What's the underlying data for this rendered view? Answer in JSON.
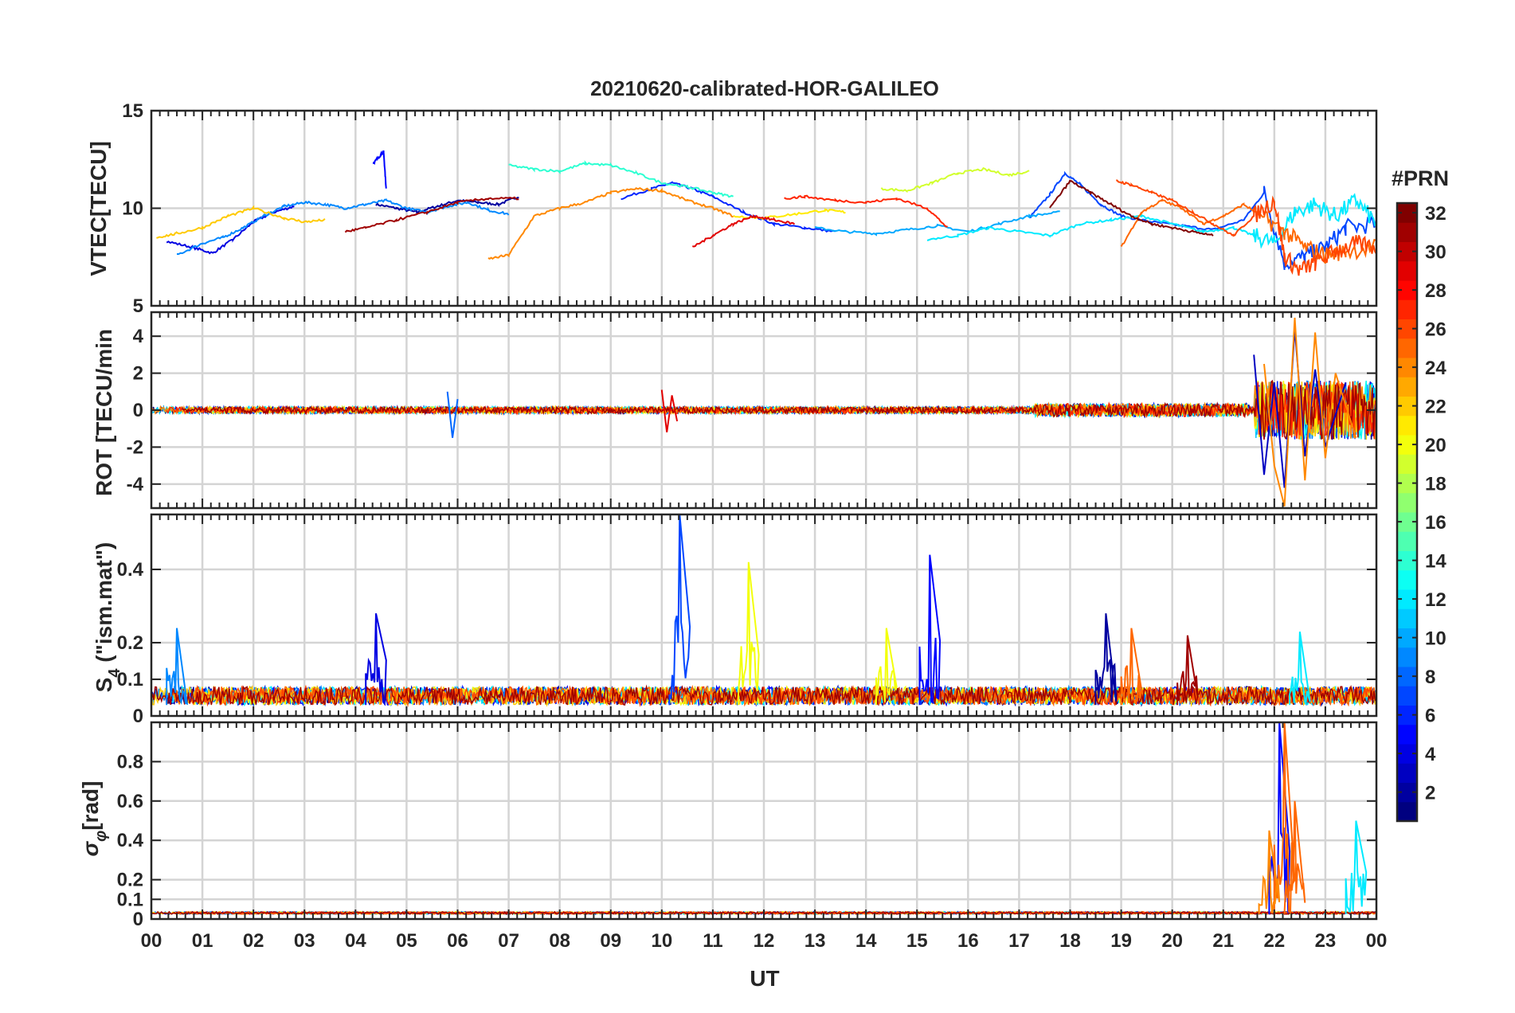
{
  "title": "20210620-calibrated-HOR-GALILEO",
  "xlabel": "UT",
  "x_tick_labels": [
    "00",
    "01",
    "02",
    "03",
    "04",
    "05",
    "06",
    "07",
    "08",
    "09",
    "10",
    "11",
    "12",
    "13",
    "14",
    "15",
    "16",
    "17",
    "18",
    "19",
    "20",
    "21",
    "22",
    "23",
    "00"
  ],
  "colorbar": {
    "label": "#PRN",
    "range": [
      1,
      32
    ],
    "tick_labels": [
      "2",
      "4",
      "6",
      "8",
      "10",
      "12",
      "14",
      "16",
      "18",
      "20",
      "22",
      "24",
      "26",
      "28",
      "30",
      "32"
    ],
    "colormap": "jet"
  },
  "chart_data": [
    {
      "panel": "vtec",
      "type": "line",
      "ylabel": "VTEC[TECU]",
      "ylim": [
        5,
        15
      ],
      "y_ticks": [
        5,
        10,
        15
      ],
      "y_tick_labels": [
        "5",
        "10",
        "15"
      ],
      "xlim": [
        0,
        24
      ],
      "grid": true,
      "series": [
        {
          "prn": 2,
          "x": [
            4.4,
            4.8,
            5.2,
            5.6,
            6.0,
            6.4,
            6.8,
            7.2
          ],
          "y": [
            10.2,
            10.0,
            9.8,
            10.1,
            10.4,
            10.3,
            10.2,
            10.6
          ]
        },
        {
          "prn": 4,
          "x": [
            0.3,
            0.8,
            1.2,
            1.6,
            2.0,
            2.4,
            2.8
          ],
          "y": [
            8.3,
            8.0,
            7.7,
            8.4,
            9.3,
            9.8,
            10.1
          ]
        },
        {
          "prn": 5,
          "x": [
            4.35,
            4.45,
            4.55,
            4.6
          ],
          "y": [
            12.3,
            12.6,
            12.9,
            11.0
          ]
        },
        {
          "prn": 6,
          "x": [
            9.2,
            9.8,
            10.2,
            10.6,
            11.0,
            11.6,
            12.2,
            12.8,
            13.4
          ],
          "y": [
            10.5,
            11.0,
            11.3,
            11.0,
            10.6,
            9.8,
            9.2,
            9.0,
            8.8
          ]
        },
        {
          "prn": 7,
          "x": [
            17.2,
            17.6,
            17.9,
            18.2,
            18.6,
            19.0,
            19.6,
            20.2,
            20.8,
            21.4,
            21.8,
            22.2,
            22.6,
            23.0,
            23.4,
            24.0
          ],
          "y": [
            9.5,
            10.7,
            11.8,
            11.2,
            10.2,
            9.6,
            9.3,
            9.1,
            8.9,
            9.4,
            10.8,
            7.2,
            7.5,
            8.0,
            9.0,
            9.2
          ]
        },
        {
          "prn": 9,
          "x": [
            0.5,
            1.0,
            1.4,
            1.8,
            2.2,
            2.6,
            3.0,
            3.4,
            3.8,
            4.2,
            4.6,
            5.0,
            5.4,
            5.8,
            6.2,
            6.6,
            7.0
          ],
          "y": [
            7.6,
            8.2,
            8.5,
            9.0,
            9.6,
            10.1,
            10.3,
            10.2,
            10.0,
            10.2,
            10.4,
            10.0,
            9.8,
            10.1,
            10.3,
            9.9,
            9.7
          ]
        },
        {
          "prn": 10,
          "x": [
            13.0,
            13.6,
            14.2,
            14.8,
            15.4,
            16.0,
            16.6,
            17.2,
            17.8
          ],
          "y": [
            9.0,
            8.8,
            8.7,
            8.9,
            9.1,
            8.8,
            9.2,
            9.6,
            9.8
          ]
        },
        {
          "prn": 12,
          "x": [
            15.2,
            15.8,
            16.4,
            17.0,
            17.6,
            18.2,
            18.8,
            19.4,
            20.0,
            20.6,
            21.2,
            21.6,
            22.0,
            22.4,
            22.8,
            23.2,
            23.6,
            24.0
          ],
          "y": [
            8.4,
            8.6,
            9.0,
            8.8,
            8.6,
            9.2,
            9.4,
            9.6,
            9.2,
            8.8,
            9.0,
            8.6,
            8.2,
            9.8,
            10.2,
            9.6,
            10.4,
            9.2
          ]
        },
        {
          "prn": 14,
          "x": [
            7.0,
            7.5,
            8.0,
            8.5,
            9.0,
            9.5,
            10.0,
            10.5,
            11.0,
            11.4
          ],
          "y": [
            12.2,
            12.0,
            11.9,
            12.3,
            12.2,
            11.8,
            11.3,
            11.1,
            10.8,
            10.6
          ]
        },
        {
          "prn": 19,
          "x": [
            14.3,
            14.8,
            15.3,
            15.8,
            16.3,
            16.8,
            17.2
          ],
          "y": [
            11.0,
            10.9,
            11.3,
            11.8,
            12.0,
            11.7,
            11.9
          ]
        },
        {
          "prn": 21,
          "x": [
            11.4,
            12.0,
            12.6,
            13.2,
            13.6
          ],
          "y": [
            9.6,
            9.5,
            9.7,
            9.9,
            9.8
          ]
        },
        {
          "prn": 22,
          "x": [
            0.1,
            0.5,
            1.0,
            1.5,
            2.0,
            2.6,
            3.0,
            3.4
          ],
          "y": [
            8.5,
            8.7,
            9.0,
            9.6,
            10.0,
            9.5,
            9.3,
            9.4
          ]
        },
        {
          "prn": 24,
          "x": [
            6.6,
            7.0,
            7.5,
            8.0,
            8.5,
            9.0,
            9.5,
            10.0,
            10.5,
            11.0,
            11.4
          ],
          "y": [
            7.4,
            7.6,
            9.6,
            10.0,
            10.3,
            10.8,
            11.0,
            10.9,
            10.4,
            10.0,
            9.6
          ]
        },
        {
          "prn": 25,
          "x": [
            19.0,
            19.4,
            19.8,
            20.2,
            20.6,
            21.0,
            21.4,
            21.8,
            22.2,
            22.6,
            23.0,
            23.4,
            24.0
          ],
          "y": [
            8.0,
            9.8,
            10.4,
            10.0,
            9.2,
            9.6,
            10.2,
            9.5,
            8.8,
            8.0,
            7.6,
            7.8,
            8.0
          ]
        },
        {
          "prn": 26,
          "x": [
            18.9,
            19.2,
            19.6,
            20.0,
            20.4,
            20.8,
            21.2,
            21.6,
            22.0,
            22.2,
            22.5,
            22.8,
            23.2,
            23.6,
            24.0
          ],
          "y": [
            11.4,
            11.2,
            10.8,
            10.4,
            9.8,
            9.2,
            8.6,
            9.6,
            10.4,
            7.5,
            6.8,
            7.2,
            7.8,
            8.2,
            8.0
          ]
        },
        {
          "prn": 27,
          "x": [
            12.4,
            12.8,
            13.4,
            14.0,
            14.6,
            15.2,
            15.6
          ],
          "y": [
            10.5,
            10.6,
            10.4,
            10.3,
            10.5,
            10.0,
            9.0
          ]
        },
        {
          "prn": 29,
          "x": [
            10.6,
            11.0,
            11.4,
            11.8,
            12.2,
            12.6
          ],
          "y": [
            8.0,
            8.6,
            9.2,
            9.6,
            9.4,
            9.2
          ]
        },
        {
          "prn": 31,
          "x": [
            3.8,
            4.2,
            4.8,
            5.4,
            6.0,
            6.6,
            7.2
          ],
          "y": [
            8.8,
            9.0,
            9.4,
            9.8,
            10.3,
            10.5,
            10.5
          ]
        },
        {
          "prn": 32,
          "x": [
            17.6,
            18.0,
            18.4,
            18.8,
            19.2,
            19.6,
            20.0,
            20.4,
            20.8
          ],
          "y": [
            10.0,
            11.4,
            10.8,
            10.2,
            9.6,
            9.2,
            9.0,
            8.8,
            8.6
          ]
        }
      ]
    },
    {
      "panel": "rot",
      "type": "line",
      "ylabel": "ROT [TECU/min",
      "ylim": [
        -5.3,
        5.3
      ],
      "y_ticks": [
        -4,
        -2,
        0,
        2,
        4
      ],
      "y_tick_labels": [
        "-4",
        "-2",
        "0",
        "2",
        "4"
      ],
      "xlim": [
        0,
        24
      ],
      "grid": true,
      "description_values": "near zero (about ±0.3 TECU/min) for most of the day; spikes to about ±1 near 06 and 10 UT; strong fluctuations between about 21.6 and 24 UT reaching about ±5 TECU/min",
      "series": [
        {
          "prn": 3,
          "x": [
            21.6,
            21.8,
            22.0,
            22.2,
            22.4,
            22.6,
            22.8,
            23.0,
            23.4
          ],
          "y": [
            3.0,
            -3.5,
            1.5,
            -4.2,
            4.4,
            -2.5,
            2.2,
            -2.0,
            1.5
          ]
        },
        {
          "prn": 24,
          "x": [
            21.8,
            22.0,
            22.2,
            22.4,
            22.6,
            22.8,
            23.0,
            23.2,
            23.6
          ],
          "y": [
            2.5,
            -3.0,
            -5.2,
            5.0,
            -3.8,
            4.2,
            -2.6,
            2.0,
            -1.5
          ]
        },
        {
          "prn": 29,
          "x": [
            10.0,
            10.1,
            10.2,
            10.3
          ],
          "y": [
            1.1,
            -1.2,
            0.8,
            -0.6
          ]
        },
        {
          "prn": 8,
          "x": [
            5.8,
            5.9,
            6.0
          ],
          "y": [
            1.0,
            -1.5,
            0.6
          ]
        }
      ]
    },
    {
      "panel": "s4",
      "type": "line",
      "ylabel": "S4 (\"ism.mat\")",
      "ylim": [
        0,
        0.55
      ],
      "y_ticks": [
        0,
        0.1,
        0.2,
        0.4
      ],
      "y_tick_labels": [
        "0",
        "0.1",
        "0.2",
        "0.4"
      ],
      "xlim": [
        0,
        24
      ],
      "grid": true,
      "peaks": [
        {
          "prn": 9,
          "x": 0.5,
          "y": 0.24
        },
        {
          "prn": 4,
          "x": 4.4,
          "y": 0.28
        },
        {
          "prn": 7,
          "x": 10.35,
          "y": 0.55
        },
        {
          "prn": 20,
          "x": 11.7,
          "y": 0.42
        },
        {
          "prn": 5,
          "x": 15.25,
          "y": 0.44
        },
        {
          "prn": 20,
          "x": 14.4,
          "y": 0.24
        },
        {
          "prn": 2,
          "x": 18.7,
          "y": 0.28
        },
        {
          "prn": 25,
          "x": 19.2,
          "y": 0.24
        },
        {
          "prn": 31,
          "x": 20.3,
          "y": 0.22
        },
        {
          "prn": 12,
          "x": 22.5,
          "y": 0.23
        }
      ]
    },
    {
      "panel": "sigma_phi",
      "type": "line",
      "ylabel": "σφ[rad]",
      "ylim": [
        0,
        1.0
      ],
      "y_ticks": [
        0,
        0.1,
        0.2,
        0.4,
        0.6,
        0.8
      ],
      "y_tick_labels": [
        "0",
        "0.1",
        "0.2",
        "0.4",
        "0.6",
        "0.8"
      ],
      "xlim": [
        0,
        24
      ],
      "grid": true,
      "peaks": [
        {
          "prn": 5,
          "x": 22.1,
          "y": 1.0
        },
        {
          "prn": 25,
          "x": 22.2,
          "y": 1.0
        },
        {
          "prn": 25,
          "x": 22.4,
          "y": 0.6
        },
        {
          "prn": 12,
          "x": 23.6,
          "y": 0.5
        },
        {
          "prn": 24,
          "x": 21.9,
          "y": 0.45
        }
      ]
    }
  ]
}
